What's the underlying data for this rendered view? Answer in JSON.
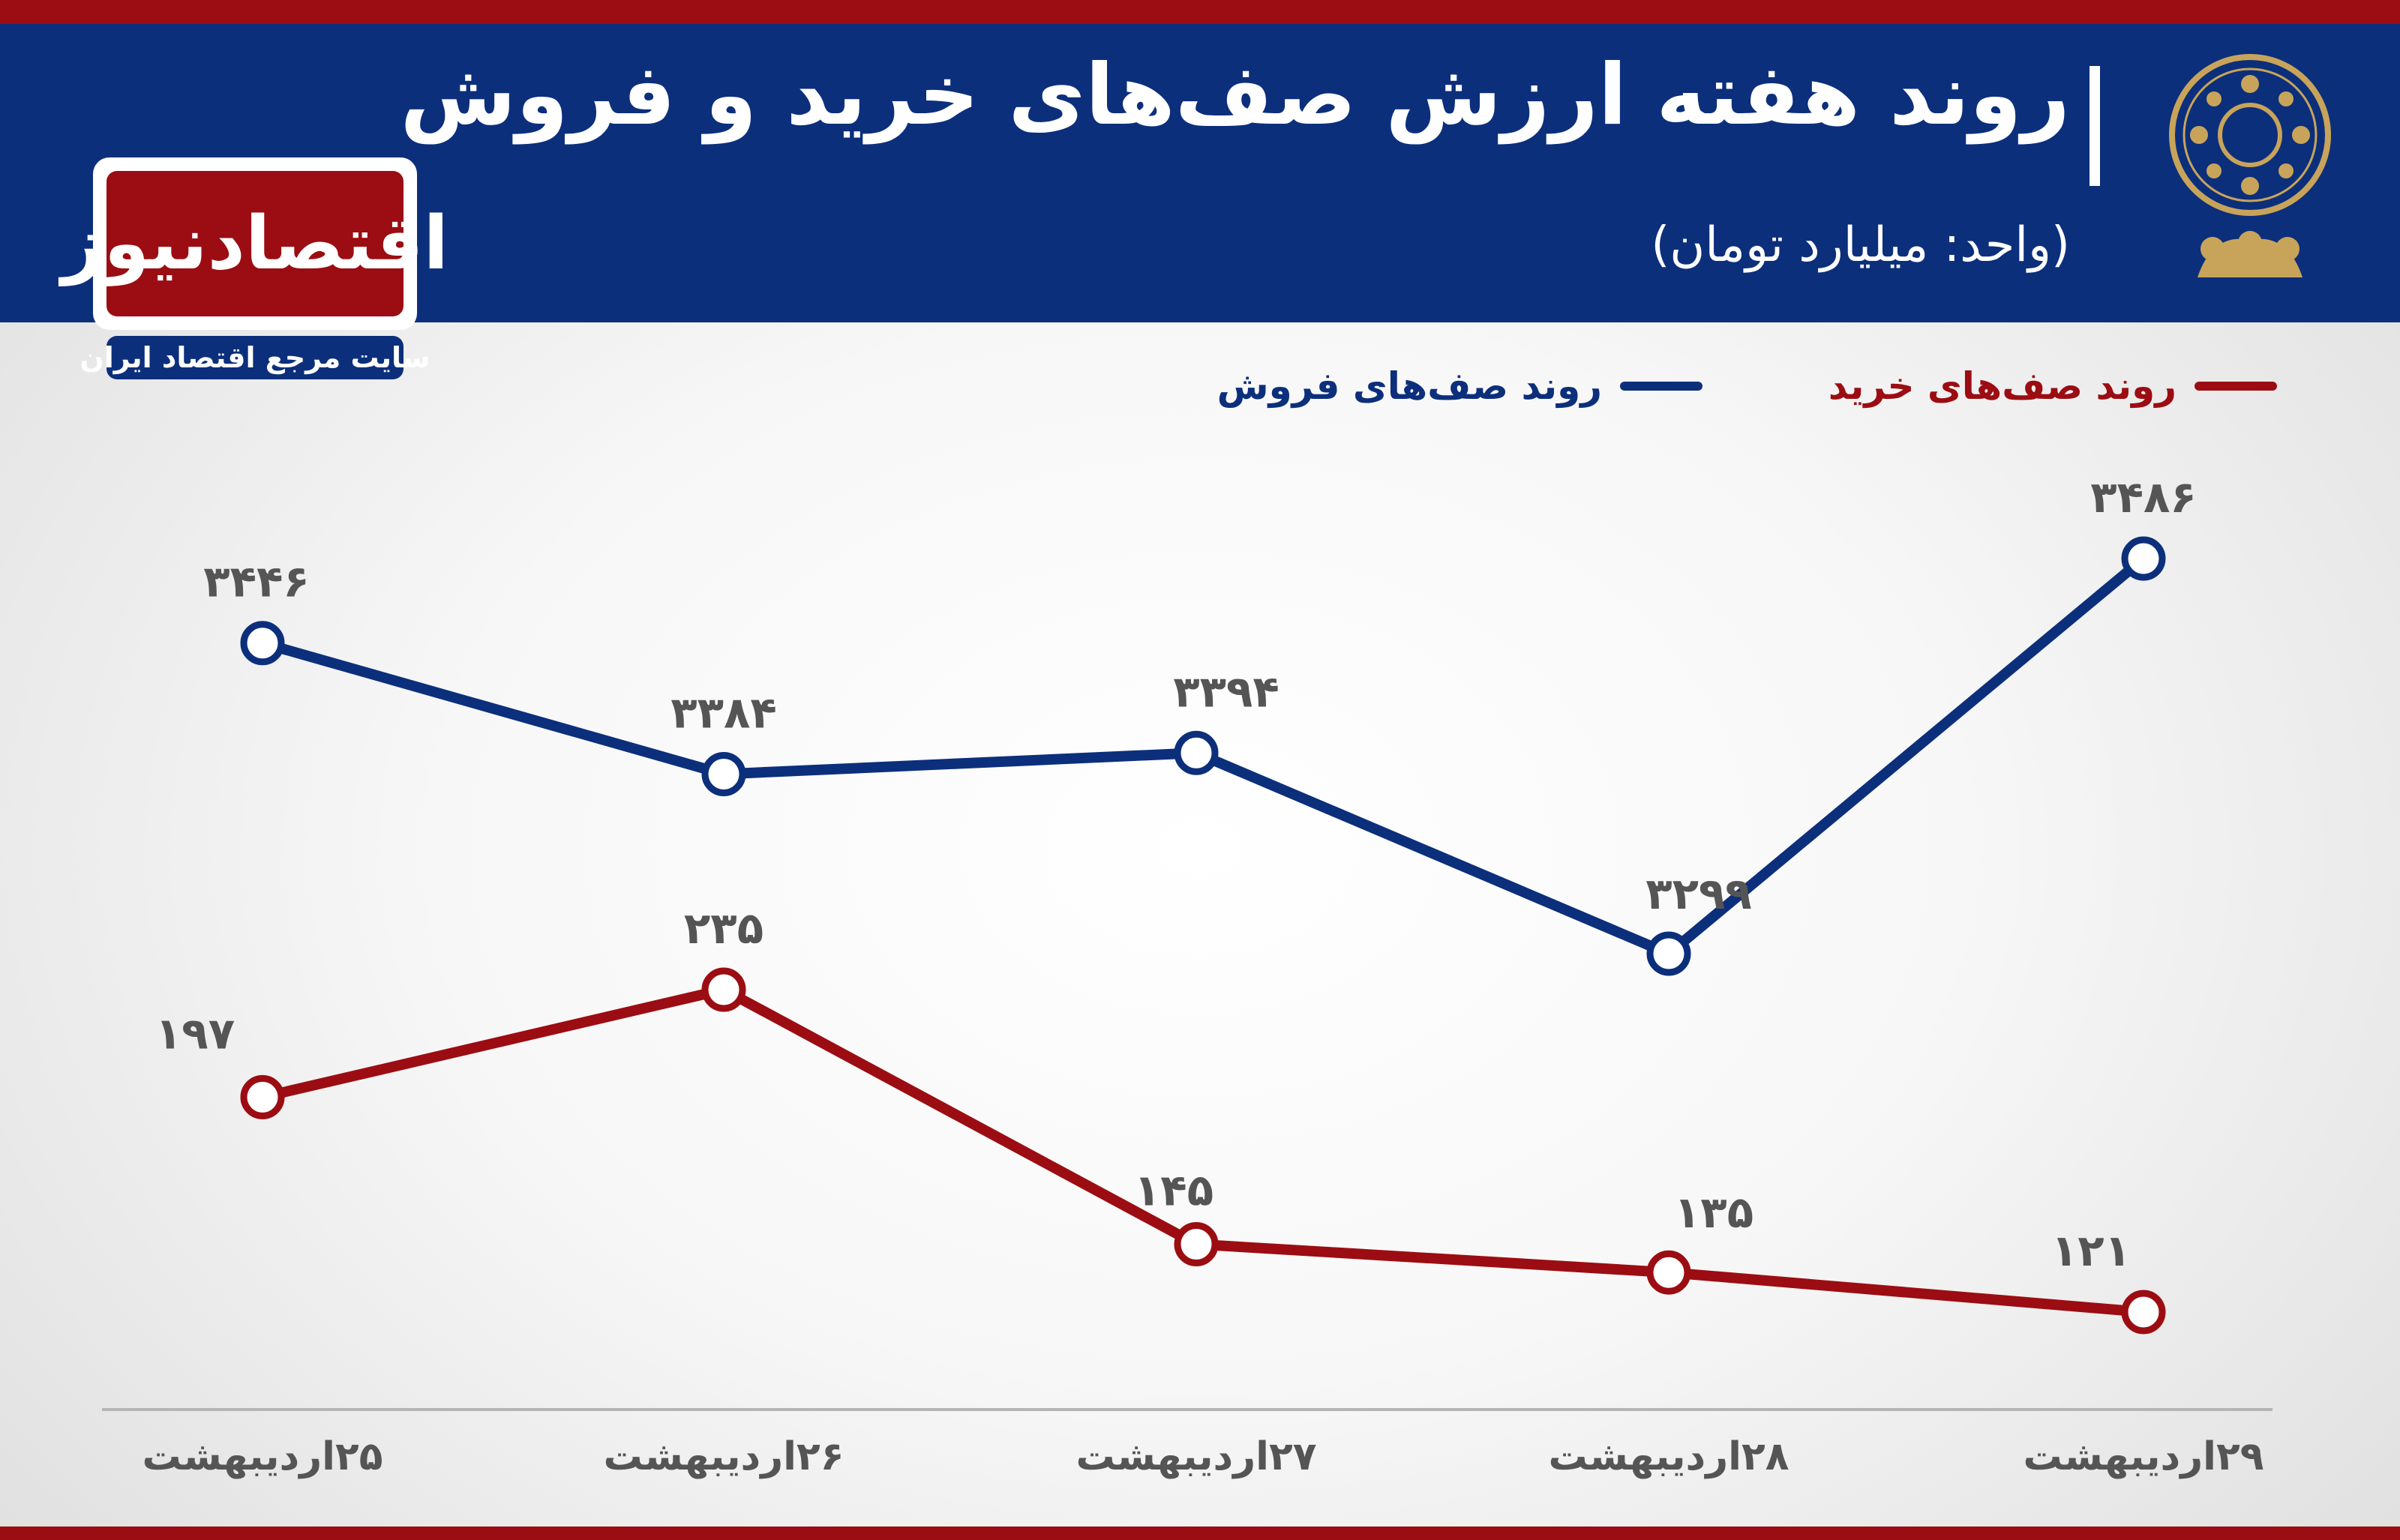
{
  "header": {
    "title": "روند هفته ارزش صف‌های خرید و فروش",
    "subtitle": "(واحد: میلیارد تومان)"
  },
  "logo": {
    "name": "اقتصادنیوز",
    "tagline": "سایت مرجع اقتصاد ایران"
  },
  "colors": {
    "buy": "#9b0d12",
    "sell": "#0c2f7c",
    "header_bg": "#0c2f7c",
    "accent": "#9b0d12"
  },
  "chart_data": {
    "type": "line",
    "title": "روند هفته ارزش صف‌های خرید و فروش",
    "subtitle": "(واحد: میلیارد تومان)",
    "categories": [
      "۲۵اردیبهشت",
      "۲۶اردیبهشت",
      "۲۷اردیبهشت",
      "۲۸اردیبهشت",
      "۲۹اردیبهشت"
    ],
    "series": [
      {
        "name": "روند صف‌های فروش",
        "color": "#0c2f7c",
        "values": [
          3446,
          3384,
          3394,
          3299,
          3486
        ],
        "labels": [
          "۳۴۴۶",
          "۳۳۸۴",
          "۳۳۹۴",
          "۳۲۹۹",
          "۳۴۸۶"
        ]
      },
      {
        "name": "روند صف‌های خرید",
        "color": "#9b0d12",
        "values": [
          197,
          235,
          145,
          135,
          121
        ],
        "labels": [
          "۱۹۷",
          "۲۳۵",
          "۱۴۵",
          "۱۳۵",
          "۱۲۱"
        ]
      }
    ],
    "legend": "top-right",
    "grid": false
  }
}
